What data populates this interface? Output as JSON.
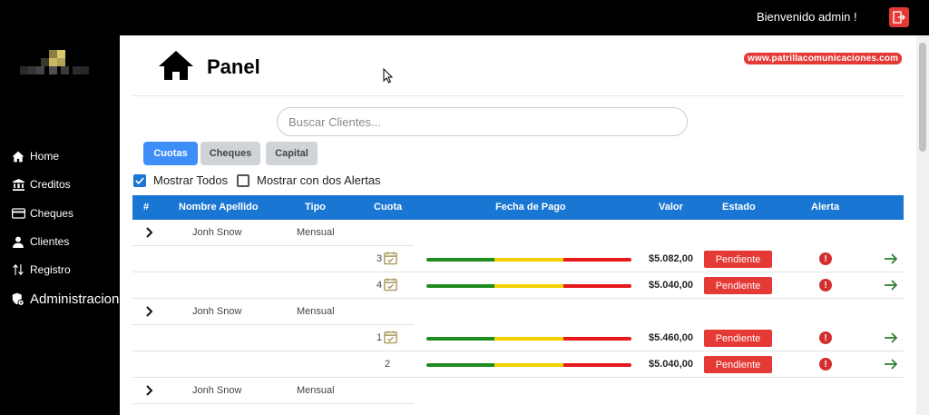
{
  "header": {
    "welcome": "Bienvenido admin !"
  },
  "sidebar": {
    "items": [
      {
        "label": "Home",
        "icon": "home-icon"
      },
      {
        "label": "Creditos",
        "icon": "bank-icon"
      },
      {
        "label": "Cheques",
        "icon": "card-icon"
      },
      {
        "label": "Clientes",
        "icon": "person-icon"
      },
      {
        "label": "Registro",
        "icon": "swap-vertical-icon"
      },
      {
        "label": "Administracion",
        "icon": "admin-shield-icon"
      }
    ]
  },
  "main": {
    "title": "Panel",
    "brand": "www.patrillacomunicaciones.com",
    "search_placeholder": "Buscar Clientes...",
    "tabs": [
      {
        "label": "Cuotas",
        "active": true
      },
      {
        "label": "Cheques",
        "active": false
      },
      {
        "label": "Capital",
        "active": false
      }
    ],
    "filters": {
      "mostrar_todos": {
        "label": "Mostrar Todos",
        "checked": true
      },
      "mostrar_alertas": {
        "label": "Mostrar con dos Alertas",
        "checked": false
      }
    }
  },
  "table": {
    "columns": [
      "#",
      "Nombre Apellido",
      "Tipo",
      "Cuota",
      "Fecha de Pago",
      "Valor",
      "Estado",
      "Alerta"
    ],
    "groups": [
      {
        "nombre": "Jonh Snow",
        "tipo": "Mensual",
        "cuotas": [
          {
            "cuota": "3",
            "calendar": true,
            "valor": "$5.082,00",
            "estado": "Pendiente",
            "alerta": "!"
          },
          {
            "cuota": "4",
            "calendar": true,
            "valor": "$5.040,00",
            "estado": "Pendiente",
            "alerta": "!"
          }
        ]
      },
      {
        "nombre": "Jonh Snow",
        "tipo": "Mensual",
        "cuotas": [
          {
            "cuota": "1",
            "calendar": true,
            "valor": "$5.460,00",
            "estado": "Pendiente",
            "alerta": "!"
          },
          {
            "cuota": "2",
            "calendar": false,
            "valor": "$5.040,00",
            "estado": "Pendiente",
            "alerta": "!"
          }
        ]
      },
      {
        "nombre": "Jonh Snow",
        "tipo": "Mensual",
        "cuotas": []
      }
    ]
  },
  "colors": {
    "accent": "#1976d2",
    "button_active": "#3e8ef7",
    "danger": "#e53935",
    "bar_green": "#1e8c1e",
    "bar_yellow": "#f2d000",
    "bar_red": "#e8191c",
    "arrow_green": "#2e7d32",
    "calendar": "#a89a5b"
  }
}
